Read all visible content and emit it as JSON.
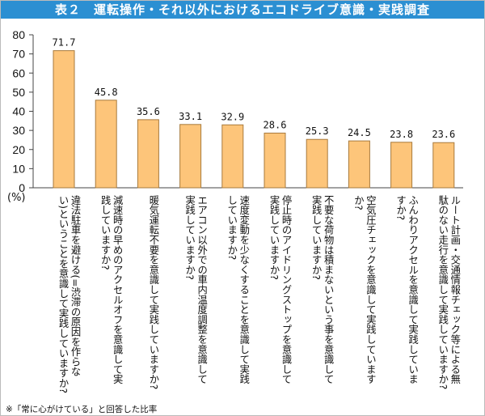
{
  "title": "表２　運転操作・それ以外におけるエコドライブ意識・実践調査",
  "footnote": "※「常に心がけている」と回答した比率",
  "colors": {
    "header": "#2b8fd2",
    "bar": "#fdc57a",
    "bar_border": "#a87a3c"
  },
  "chart_data": {
    "type": "bar",
    "title": "表２　運転操作・それ以外におけるエコドライブ意識・実践調査",
    "ylabel": "(%)",
    "ylim": [
      0,
      80
    ],
    "yticks": [
      0,
      10,
      20,
      30,
      40,
      50,
      60,
      70,
      80
    ],
    "grid": false,
    "values": [
      71.7,
      45.8,
      35.6,
      33.1,
      32.9,
      28.6,
      25.3,
      24.5,
      23.8,
      23.6
    ],
    "categories": [
      [
        "違法駐車を避ける(=渋滞の原因を作らな",
        "い)ということを意識して実践していますか?"
      ],
      [
        "減速時の早めのアクセルオフを意識して実",
        "践していますか?"
      ],
      [
        "暖気運転不要を意識して実践していますか?"
      ],
      [
        "エアコン以外での車内温度調整を意識して",
        "実践していますか?"
      ],
      [
        "速度変動を少なくすることを意識して実践",
        "していますか?"
      ],
      [
        "停止時のアイドリングストップを意識して",
        "実践していますか?"
      ],
      [
        "不要な荷物は積まないという事を意識して",
        "実践していますか?"
      ],
      [
        "空気圧チェックを意識して実践しています",
        "か?"
      ],
      [
        "ふんわりアクセルを意識して実践していま",
        "すか?"
      ],
      [
        "ルート計画・交通情報チェック等による無",
        "駄のない走行を意識して実践していますか?"
      ]
    ]
  }
}
